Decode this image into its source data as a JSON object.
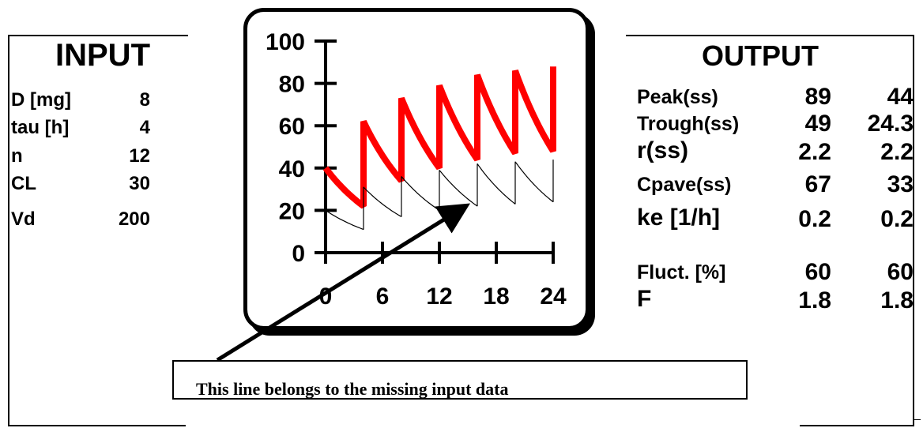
{
  "input": {
    "title": "INPUT",
    "rows": [
      {
        "label": "D [mg]",
        "value": "8"
      },
      {
        "label": "tau [h]",
        "value": "4"
      },
      {
        "label": "n",
        "value": "12"
      },
      {
        "label": "CL",
        "value": "30"
      },
      {
        "label": "Vd",
        "value": "200"
      }
    ]
  },
  "output": {
    "title": "OUTPUT",
    "rows": [
      {
        "label": "Peak(ss)",
        "v1": "89",
        "v2": "44"
      },
      {
        "label": "Trough(ss)",
        "v1": "49",
        "v2": "24.3"
      },
      {
        "label": "r(ss)",
        "v1": "2.2",
        "v2": "2.2"
      },
      {
        "label": "Cpave(ss)",
        "v1": "67",
        "v2": "33"
      },
      {
        "label": "ke [1/h]",
        "v1": "0.2",
        "v2": "0.2"
      },
      {
        "label": "Fluct. [%]",
        "v1": "60",
        "v2": "60"
      },
      {
        "label": "F",
        "v1": "1.8",
        "v2": "1.8"
      }
    ]
  },
  "annotation": {
    "text": "This line belongs to the missing input data"
  },
  "colors": {
    "red_series": "#ff0000",
    "black_series": "#000000"
  },
  "chart_data": {
    "type": "line",
    "title": "",
    "xlabel": "",
    "ylabel": "",
    "xlim": [
      0,
      24
    ],
    "ylim": [
      0,
      100
    ],
    "xticks": [
      "0",
      "6",
      "12",
      "18",
      "24"
    ],
    "yticks": [
      "0",
      "20",
      "40",
      "60",
      "80",
      "100"
    ],
    "grid": false,
    "series": [
      {
        "color": "#ff0000",
        "x": [
          0,
          4,
          4,
          8,
          8,
          12,
          12,
          16,
          16,
          20,
          20,
          24,
          24
        ],
        "y": [
          40,
          22,
          62,
          34,
          73,
          40,
          79,
          44,
          84,
          47,
          86,
          48,
          88
        ]
      },
      {
        "color": "#000000",
        "x": [
          0,
          4,
          4,
          8,
          8,
          12,
          12,
          16,
          16,
          20,
          20,
          24,
          24
        ],
        "y": [
          20,
          11,
          31,
          17,
          36,
          20,
          39,
          22,
          42,
          23,
          43,
          24,
          44
        ]
      }
    ]
  }
}
